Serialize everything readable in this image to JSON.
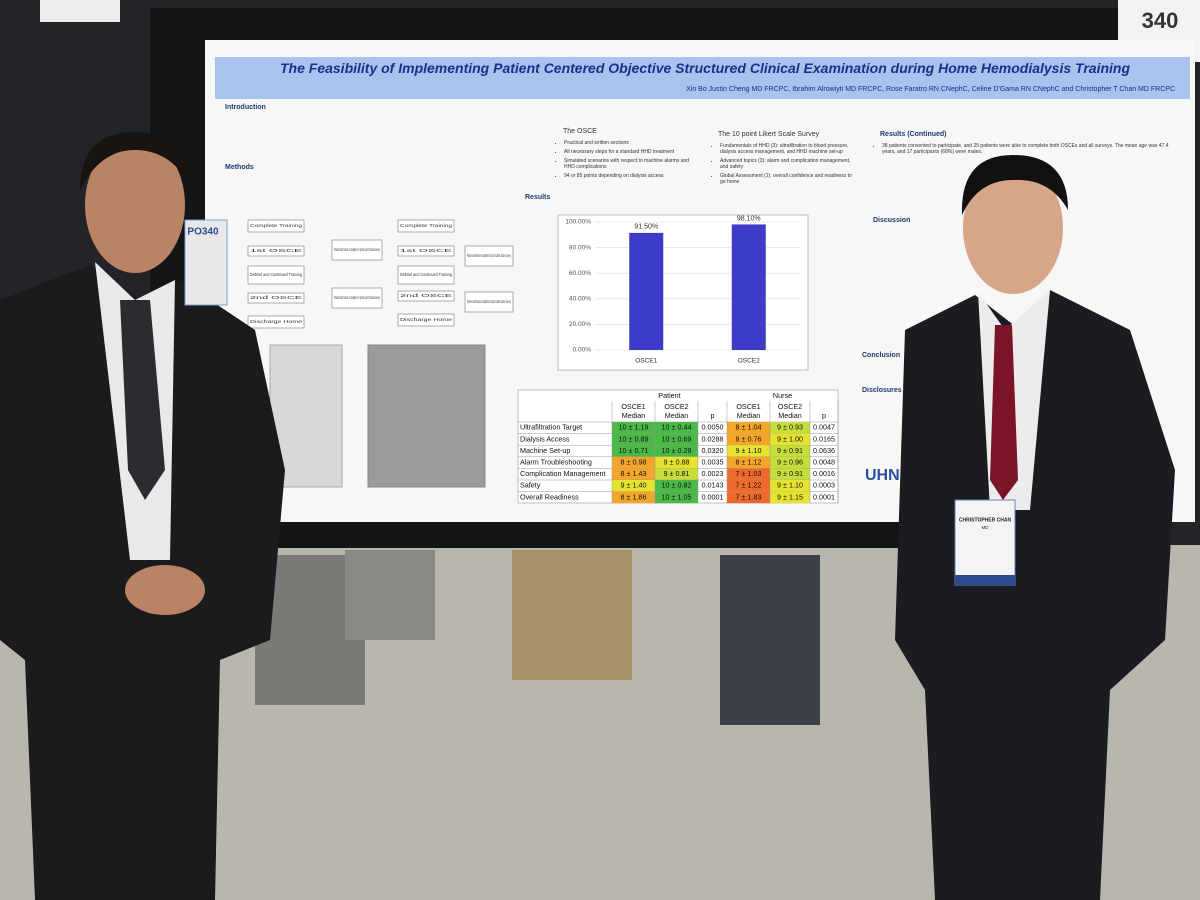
{
  "booth_number": "340",
  "poster": {
    "title": "The Feasibility of Implementing Patient Centered Objective Structured Clinical Examination during Home Hemodialysis Training",
    "authors": "Xin Bo Justin Cheng MD FRCPC, Ibrahim Alrowiyti MD FRCPC, Rose Faratro RN CNephC, Celine D'Gama RN CNephC and Christopher T Chan MD FRCPC",
    "headings": {
      "introduction": "Introduction",
      "methods": "Methods",
      "results": "Results",
      "osce": "The OSCE",
      "likert": "The 10 point Likert Scale Survey",
      "results_continued": "Results (Continued)",
      "discussion": "Discussion",
      "conclusion": "Conclusion",
      "disclosures": "Disclosures"
    },
    "osce_points": [
      "Practical and written sections",
      "All necessary steps for a standard HHD treatment",
      "Simulated scenarios with respect to machine alarms and HHD complications",
      "94 or 85 points depending on dialysis access"
    ],
    "likert_points": [
      "Fundamentals of HHD (3): ultrafiltration to blood pressure, dialysis access management, and HHD machine set-up",
      "Advanced topics (3): alarm and complication management, and safety",
      "Global Assessment (1): overall confidence and readiness to go home"
    ],
    "results_points": [
      "38 patients consented to participate, and 25 patients were able to complete both OSCEs and all surveys. The mean age was 47.4 years, and 17 participants (68%) were males."
    ],
    "flowchart": [
      "Complete Training",
      "1st OSCE",
      "Debrief and Continued Training",
      "2nd OSCE",
      "Discharge Home",
      "Patient and Nurse Complete 10-point Likert Scale Survey",
      "Patient and Nurse Complete 10-point Likert Scale Survey",
      "Complete Training",
      "1st OSCE",
      "Debrief and Continued Training",
      "2nd OSCE",
      "Discharge Home",
      "Patient and Nurse Complete 10-point Likert Scale Survey",
      "Patient and Nurse Complete 10-point Likert Scale Survey"
    ],
    "logo": "UHN"
  },
  "chart_data": {
    "type": "bar",
    "categories": [
      "OSCE1",
      "OSCE2"
    ],
    "values": [
      91.5,
      98.1
    ],
    "value_labels": [
      "91.50%",
      "98.10%"
    ],
    "color": "#3c3cc8",
    "ylim": [
      0,
      100
    ],
    "yticks": [
      {
        "value": 0,
        "label": "0.00%"
      },
      {
        "value": 20,
        "label": "20.00%"
      },
      {
        "value": 40,
        "label": "40.00%"
      },
      {
        "value": 60,
        "label": "60.00%"
      },
      {
        "value": 80,
        "label": "80.00%"
      },
      {
        "value": 100,
        "label": "100.00%"
      }
    ]
  },
  "table": {
    "groups": [
      "Patient",
      "Nurse"
    ],
    "columns": [
      {
        "name": "OSCE1",
        "sub": "Median"
      },
      {
        "name": "OSCE2",
        "sub": "Median"
      },
      {
        "name": "p"
      },
      {
        "name": "OSCE1",
        "sub": "Median"
      },
      {
        "name": "OSCE2",
        "sub": "Median"
      },
      {
        "name": "p"
      }
    ],
    "rows": [
      {
        "label": "Ultrafiltration Target",
        "cells": [
          "10 ± 1.19",
          "10 ± 0.44",
          "0.0050",
          "8 ± 1.04",
          "9 ± 0.93",
          "0.0047"
        ],
        "fills": [
          "#4cb848",
          "#4cb848",
          "#f4a52a",
          "#c9dd3a"
        ]
      },
      {
        "label": "Dialysis Access",
        "cells": [
          "10 ± 0.89",
          "10 ± 0.69",
          "0.0288",
          "8 ± 0.76",
          "9 ± 1.00",
          "0.0165"
        ],
        "fills": [
          "#4cb848",
          "#4cb848",
          "#f4a52a",
          "#e6e330"
        ]
      },
      {
        "label": "Machine Set-up",
        "cells": [
          "10 ± 0.71",
          "10 ± 0.28",
          "0.0320",
          "9 ± 1.10",
          "9 ± 0.91",
          "0.0636"
        ],
        "fills": [
          "#4cb848",
          "#4cb848",
          "#e6e330",
          "#c9dd3a"
        ]
      },
      {
        "label": "Alarm Troubleshooting",
        "cells": [
          "8 ± 0.98",
          "9 ± 0.88",
          "0.0035",
          "8 ± 1.12",
          "9 ± 0.96",
          "0.0048"
        ],
        "fills": [
          "#f4a52a",
          "#e6e330",
          "#f4a52a",
          "#c9dd3a"
        ]
      },
      {
        "label": "Complication Management",
        "cells": [
          "8 ± 1.43",
          "9 ± 0.81",
          "0.0023",
          "7 ± 1.03",
          "9 ± 0.91",
          "0.0016"
        ],
        "fills": [
          "#f4a52a",
          "#c9dd3a",
          "#ee6a2c",
          "#c9dd3a"
        ]
      },
      {
        "label": "Safety",
        "cells": [
          "9 ± 1.40",
          "10 ± 0.82",
          "0.0143",
          "7 ± 1.22",
          "9 ± 1.10",
          "0.0003"
        ],
        "fills": [
          "#e6e330",
          "#4cb848",
          "#ee6a2c",
          "#e6e330"
        ]
      },
      {
        "label": "Overall Readiness",
        "cells": [
          "8 ± 1.86",
          "10 ± 1.05",
          "0.0001",
          "7 ± 1.83",
          "9 ± 1.15",
          "0.0001"
        ],
        "fills": [
          "#f4a52a",
          "#4cb848",
          "#ee6a2c",
          "#e6e330"
        ]
      }
    ]
  },
  "badges": {
    "poster_id": "PO340",
    "name": "CHRISTOPHER CHAN",
    "credential": "MD"
  }
}
